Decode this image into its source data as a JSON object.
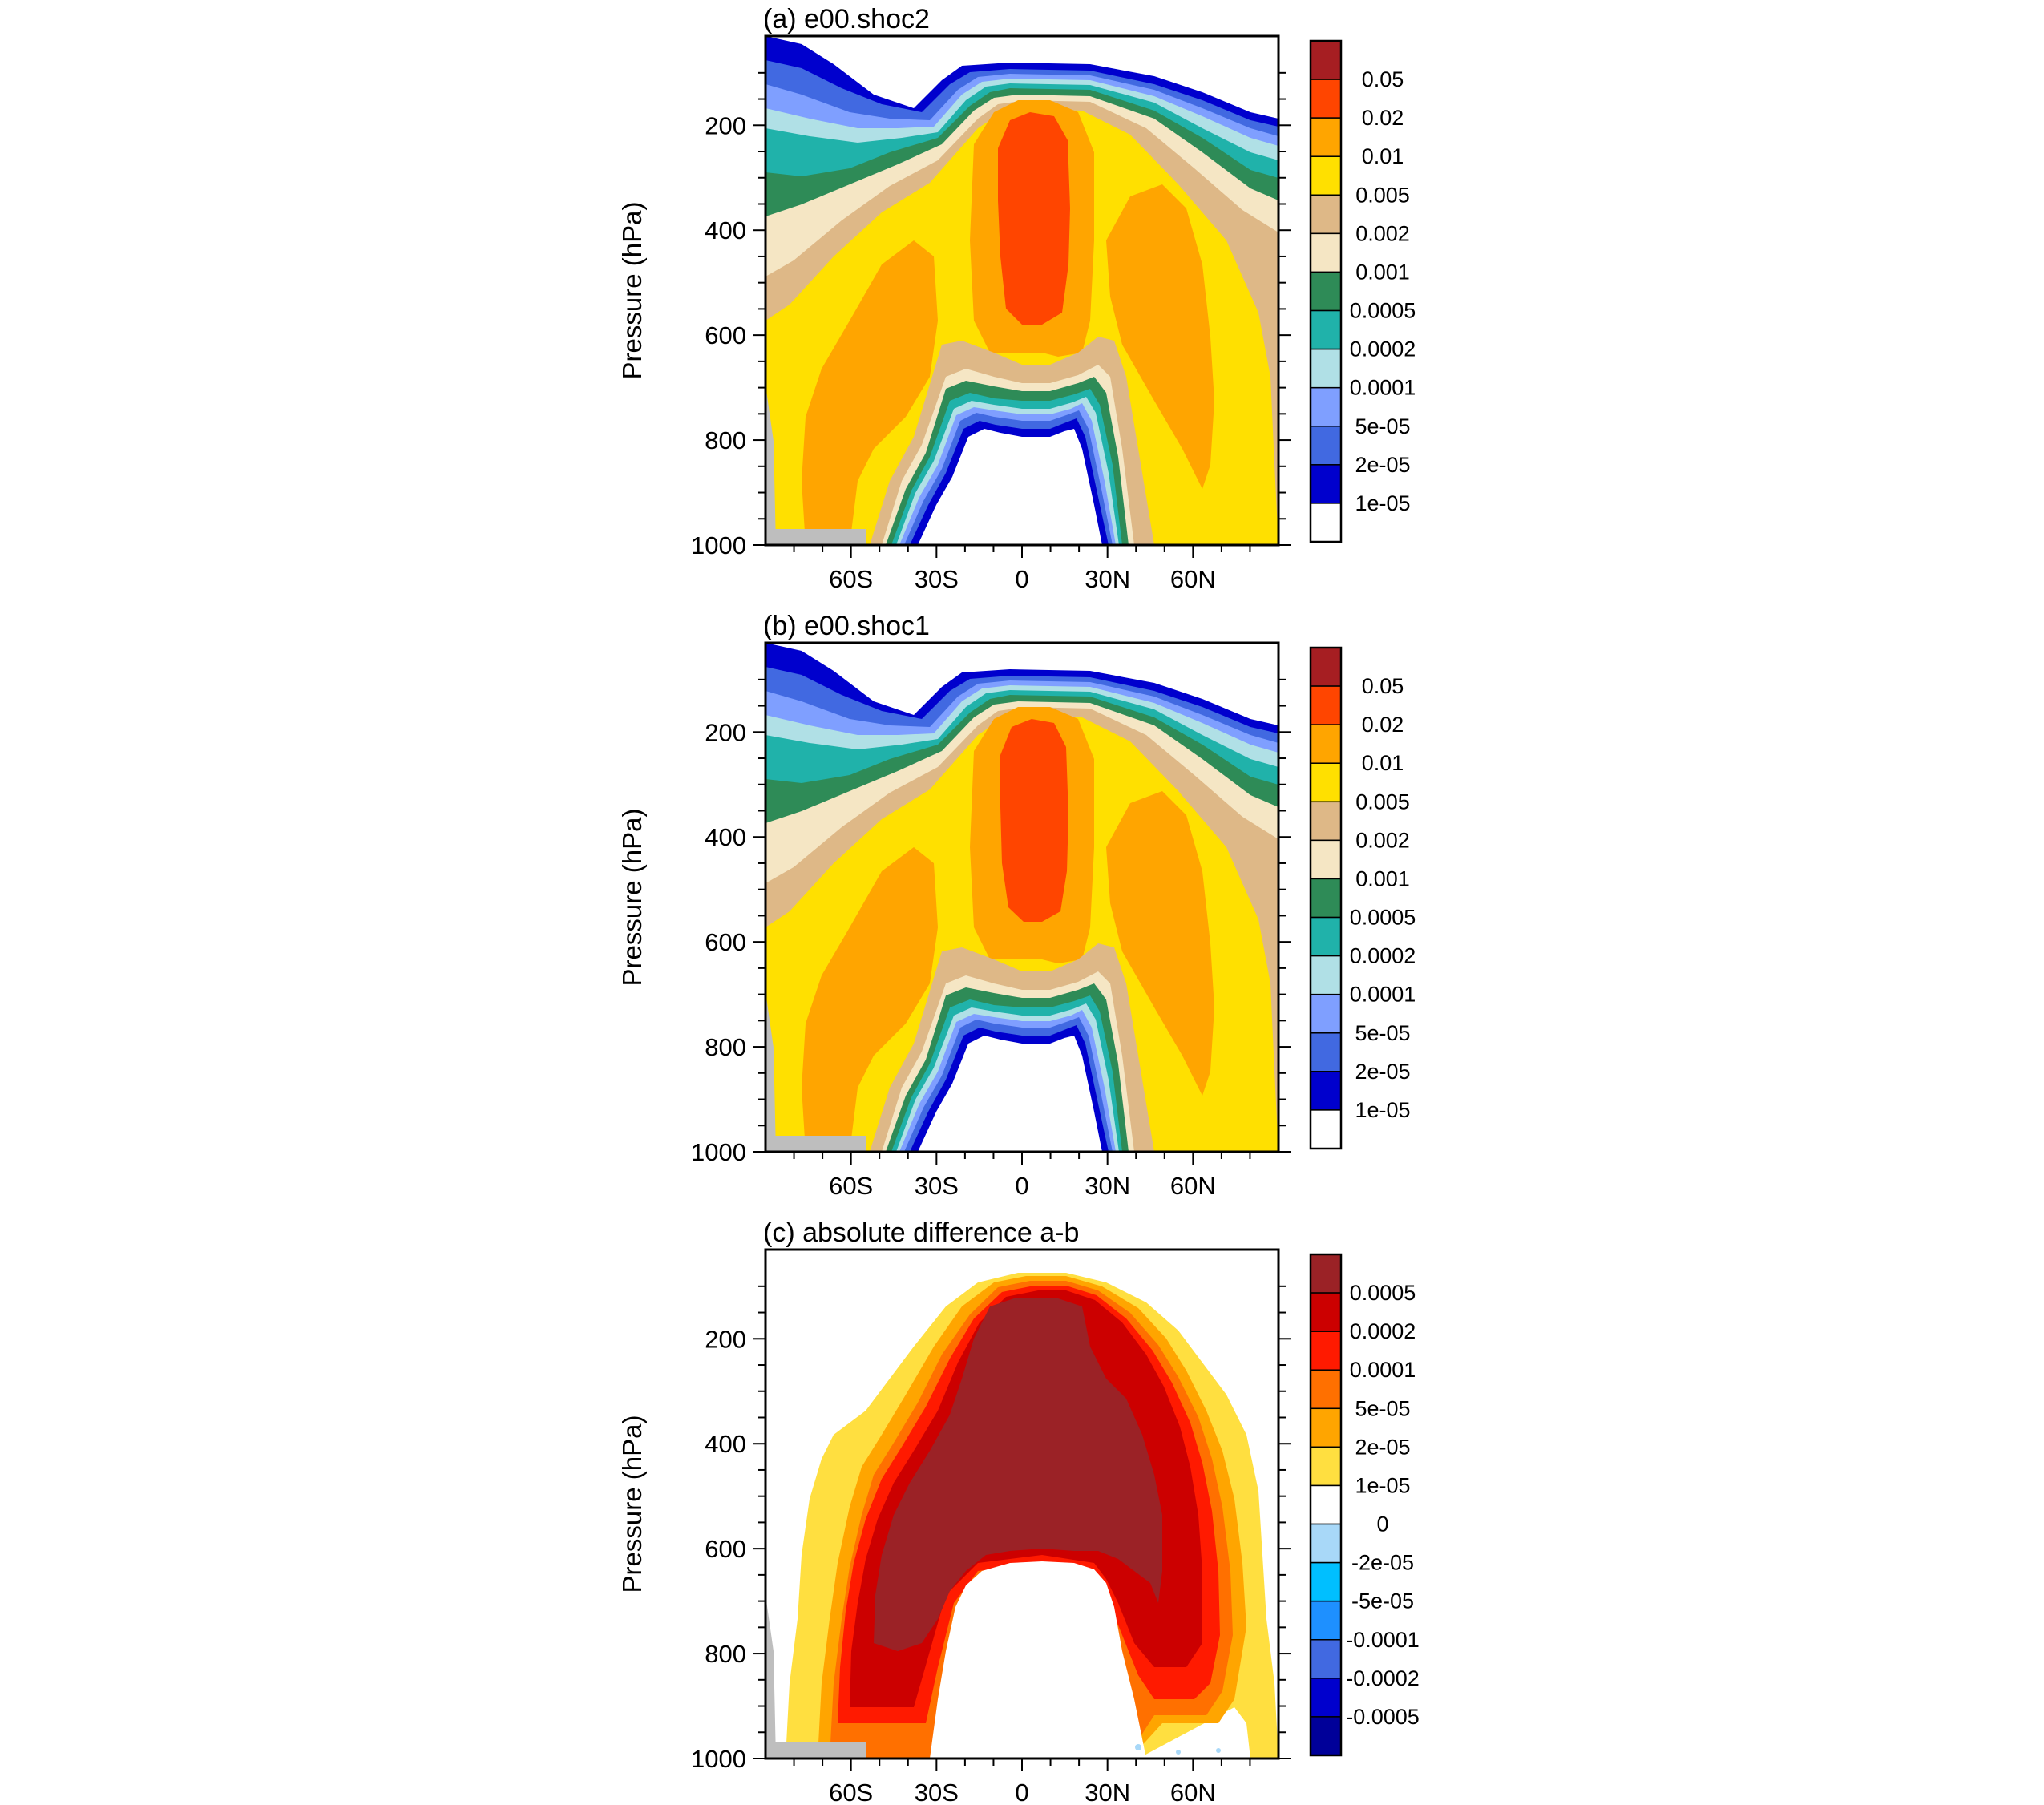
{
  "figure": {
    "panels": [
      {
        "id": "a",
        "title": "(a) e00.shoc2",
        "ylabel": "Pressure (hPa)",
        "colorbar_labels": [
          "0.05",
          "0.02",
          "0.01",
          "0.005",
          "0.002",
          "0.001",
          "0.0005",
          "0.0002",
          "0.0001",
          "5e-05",
          "2e-05",
          "1e-05"
        ],
        "colorbar_colors": [
          "#A61E22",
          "#FF4500",
          "#FFA500",
          "#FFE000",
          "#DEB887",
          "#F5E6C4",
          "#2E8B57",
          "#20B2AA",
          "#B0E0E6",
          "#7F9FFF",
          "#4169E1",
          "#0000CD",
          "#FFFFFF"
        ]
      },
      {
        "id": "b",
        "title": "(b) e00.shoc1",
        "ylabel": "Pressure (hPa)",
        "colorbar_labels": [
          "0.05",
          "0.02",
          "0.01",
          "0.005",
          "0.002",
          "0.001",
          "0.0005",
          "0.0002",
          "0.0001",
          "5e-05",
          "2e-05",
          "1e-05"
        ],
        "colorbar_colors": [
          "#A61E22",
          "#FF4500",
          "#FFA500",
          "#FFE000",
          "#DEB887",
          "#F5E6C4",
          "#2E8B57",
          "#20B2AA",
          "#B0E0E6",
          "#7F9FFF",
          "#4169E1",
          "#0000CD",
          "#FFFFFF"
        ]
      },
      {
        "id": "c",
        "title": "(c) absolute difference a-b",
        "ylabel": "Pressure (hPa)",
        "colorbar_labels": [
          "0.0005",
          "0.0002",
          "0.0001",
          "5e-05",
          "2e-05",
          "1e-05",
          "0",
          "-2e-05",
          "-5e-05",
          "-0.0001",
          "-0.0002",
          "-0.0005"
        ],
        "colorbar_colors": [
          "#9B2226",
          "#CC0000",
          "#FF1A00",
          "#FF7000",
          "#FFA500",
          "#FFDF40",
          "#FFFFFF",
          "#A8D8F8",
          "#00BFFF",
          "#1E90FF",
          "#4169E1",
          "#0000CD",
          "#000099"
        ]
      }
    ],
    "x_ticks": [
      "60S",
      "30S",
      "0",
      "30N",
      "60N"
    ],
    "y_ticks": [
      "200",
      "400",
      "600",
      "800",
      "1000"
    ]
  },
  "chart_data": [
    {
      "type": "heatmap",
      "title": "(a) e00.shoc2",
      "ylabel": "Pressure (hPa)",
      "x_ticks": [
        -60,
        -30,
        0,
        30,
        60
      ],
      "x_tick_labels": [
        "60S",
        "30S",
        "0",
        "30N",
        "60N"
      ],
      "y_ticks": [
        200,
        400,
        600,
        800,
        1000
      ],
      "ylim": [
        1000,
        30
      ],
      "xlim": [
        -90,
        90
      ],
      "levels": [
        1e-05,
        2e-05,
        5e-05,
        0.0001,
        0.0002,
        0.0005,
        0.001,
        0.002,
        0.005,
        0.01,
        0.02,
        0.05
      ],
      "max_core": {
        "lat_range": [
          -10,
          10
        ],
        "pressure_range": [
          140,
          560
        ],
        "level": 0.02
      }
    },
    {
      "type": "heatmap",
      "title": "(b) e00.shoc1",
      "ylabel": "Pressure (hPa)",
      "x_ticks": [
        -60,
        -30,
        0,
        30,
        60
      ],
      "x_tick_labels": [
        "60S",
        "30S",
        "0",
        "30N",
        "60N"
      ],
      "y_ticks": [
        200,
        400,
        600,
        800,
        1000
      ],
      "ylim": [
        1000,
        30
      ],
      "xlim": [
        -90,
        90
      ],
      "levels": [
        1e-05,
        2e-05,
        5e-05,
        0.0001,
        0.0002,
        0.0005,
        0.001,
        0.002,
        0.005,
        0.01,
        0.02,
        0.05
      ],
      "max_core": {
        "lat_range": [
          -8,
          10
        ],
        "pressure_range": [
          140,
          540
        ],
        "level": 0.02
      }
    },
    {
      "type": "heatmap",
      "title": "(c) absolute difference a-b",
      "ylabel": "Pressure (hPa)",
      "x_ticks": [
        -60,
        -30,
        0,
        30,
        60
      ],
      "x_tick_labels": [
        "60S",
        "30S",
        "0",
        "30N",
        "60N"
      ],
      "y_ticks": [
        200,
        400,
        600,
        800,
        1000
      ],
      "ylim": [
        1000,
        30
      ],
      "xlim": [
        -90,
        90
      ],
      "levels": [
        -0.0005,
        -0.0002,
        -0.0001,
        -5e-05,
        -2e-05,
        0,
        1e-05,
        2e-05,
        5e-05,
        0.0001,
        0.0002,
        0.0005
      ],
      "max_core": {
        "lat_range": [
          -50,
          45
        ],
        "pressure_range": [
          100,
          750
        ],
        "level": 0.0005
      }
    }
  ]
}
